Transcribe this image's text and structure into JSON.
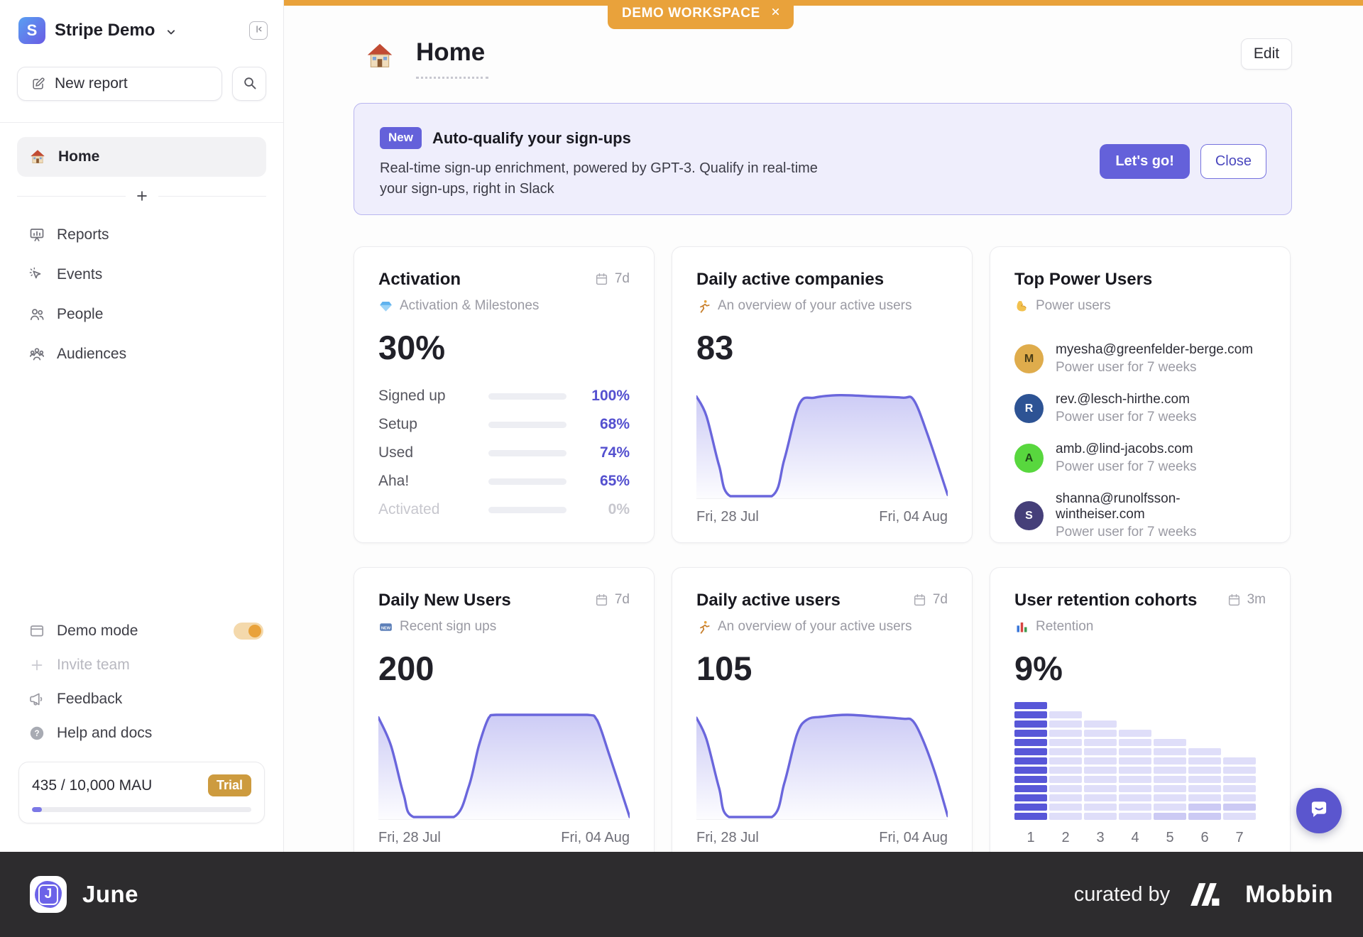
{
  "workspace": {
    "name": "Stripe Demo",
    "logo_letter": "S"
  },
  "sidebar": {
    "new_report_label": "New report",
    "nav": [
      {
        "icon": "house",
        "label": "Home",
        "active": true
      },
      {
        "icon": "reports",
        "label": "Reports"
      },
      {
        "icon": "events",
        "label": "Events"
      },
      {
        "icon": "people",
        "label": "People"
      },
      {
        "icon": "audiences",
        "label": "Audiences"
      }
    ],
    "bottom_nav": [
      {
        "icon": "window",
        "label": "Demo mode",
        "toggle": true,
        "toggle_on": true
      },
      {
        "icon": "plus",
        "label": "Invite team",
        "muted": true
      },
      {
        "icon": "megaphone",
        "label": "Feedback"
      },
      {
        "icon": "help",
        "label": "Help and docs"
      }
    ],
    "usage": {
      "text": "435 / 10,000 MAU",
      "badge": "Trial",
      "progress_pct": 4.4
    }
  },
  "topbar": {
    "demo_badge": "DEMO WORKSPACE"
  },
  "header": {
    "title": "Home",
    "edit_label": "Edit"
  },
  "banner": {
    "badge": "New",
    "title": "Auto-qualify your sign-ups",
    "body_line1": "Real-time sign-up enrichment, powered by GPT-3. Qualify in real-time",
    "body_line2": "your sign-ups, right in Slack",
    "primary_label": "Let's go!",
    "secondary_label": "Close"
  },
  "cards": {
    "activation": {
      "title": "Activation",
      "range": "7d",
      "subtitle": "Activation & Milestones",
      "subtitle_icon": "gem",
      "value": "30%",
      "rows": [
        {
          "label": "Signed up",
          "pct": 100
        },
        {
          "label": "Setup",
          "pct": 68
        },
        {
          "label": "Used",
          "pct": 74
        },
        {
          "label": "Aha!",
          "pct": 65
        },
        {
          "label": "Activated",
          "pct": 0,
          "muted": true
        }
      ]
    },
    "daily_active_companies": {
      "title": "Daily active companies",
      "subtitle": "An overview of your active users",
      "subtitle_icon": "runner",
      "value": "83",
      "x_start": "Fri, 28 Jul",
      "x_end": "Fri, 04 Aug"
    },
    "top_power_users": {
      "title": "Top Power Users",
      "subtitle": "Power users",
      "subtitle_icon": "muscle",
      "users": [
        {
          "initial": "M",
          "color": "#DFAC4C",
          "text_color": "#4A3D17",
          "email": "myesha@greenfelder-berge.com",
          "desc": "Power user for 7 weeks"
        },
        {
          "initial": "R",
          "color": "#2D5394",
          "text_color": "#FFFFFF",
          "email": "rev.@lesch-hirthe.com",
          "desc": "Power user for 7 weeks"
        },
        {
          "initial": "A",
          "color": "#58D73E",
          "text_color": "#1F4A17",
          "email": "amb.@lind-jacobs.com",
          "desc": "Power user for 7 weeks"
        },
        {
          "initial": "S",
          "color": "#453F79",
          "text_color": "#FFFFFF",
          "email": "shanna@runolfsson-wintheiser.com",
          "desc": "Power user for 7 weeks"
        }
      ]
    },
    "daily_new_users": {
      "title": "Daily New Users",
      "range": "7d",
      "subtitle": "Recent sign ups",
      "subtitle_icon": "new",
      "value": "200",
      "x_start": "Fri, 28 Jul",
      "x_end": "Fri, 04 Aug"
    },
    "daily_active_users": {
      "title": "Daily active users",
      "range": "7d",
      "subtitle": "An overview of your active users",
      "subtitle_icon": "runner",
      "value": "105",
      "x_start": "Fri, 28 Jul",
      "x_end": "Fri, 04 Aug"
    },
    "user_retention": {
      "title": "User retention cohorts",
      "range": "3m",
      "subtitle": "Retention",
      "subtitle_icon": "chartbars",
      "value": "9%"
    }
  },
  "chart_data": [
    {
      "id": "daily_active_companies",
      "type": "area",
      "title": "Daily active companies",
      "y_max": 83,
      "x_range": [
        "Fri, 28 Jul",
        "Fri, 04 Aug"
      ],
      "points": [
        [
          0,
          81
        ],
        [
          0.04,
          65
        ],
        [
          0.09,
          25
        ],
        [
          0.135,
          0
        ],
        [
          0.3,
          0
        ],
        [
          0.35,
          30
        ],
        [
          0.41,
          75
        ],
        [
          0.47,
          80
        ],
        [
          0.57,
          82
        ],
        [
          0.7,
          81
        ],
        [
          0.82,
          80
        ],
        [
          0.865,
          78
        ],
        [
          0.92,
          50
        ],
        [
          1,
          1
        ]
      ]
    },
    {
      "id": "daily_new_users",
      "type": "area",
      "title": "Daily New Users",
      "y_max": 200,
      "x_range": [
        "Fri, 28 Jul",
        "Fri, 04 Aug"
      ],
      "points": [
        [
          0,
          195
        ],
        [
          0.05,
          140
        ],
        [
          0.1,
          45
        ],
        [
          0.14,
          0
        ],
        [
          0.3,
          0
        ],
        [
          0.36,
          60
        ],
        [
          0.4,
          140
        ],
        [
          0.44,
          195
        ],
        [
          0.47,
          200
        ],
        [
          0.65,
          200
        ],
        [
          0.83,
          200
        ],
        [
          0.87,
          190
        ],
        [
          0.92,
          120
        ],
        [
          1,
          0
        ]
      ]
    },
    {
      "id": "daily_active_users",
      "type": "area",
      "title": "Daily active users",
      "y_max": 105,
      "x_range": [
        "Fri, 28 Jul",
        "Fri, 04 Aug"
      ],
      "points": [
        [
          0,
          102
        ],
        [
          0.04,
          80
        ],
        [
          0.09,
          30
        ],
        [
          0.13,
          0
        ],
        [
          0.3,
          0
        ],
        [
          0.35,
          35
        ],
        [
          0.4,
          85
        ],
        [
          0.44,
          100
        ],
        [
          0.5,
          103
        ],
        [
          0.6,
          105
        ],
        [
          0.72,
          103
        ],
        [
          0.82,
          101
        ],
        [
          0.86,
          99
        ],
        [
          0.9,
          80
        ],
        [
          0.95,
          45
        ],
        [
          1,
          1
        ]
      ]
    },
    {
      "id": "user_retention_cohorts",
      "type": "heatmap",
      "title": "User retention cohorts",
      "x_labels": [
        "1",
        "2",
        "3",
        "4",
        "5",
        "6",
        "7"
      ],
      "total_rows": 13,
      "cells_per_column": [
        13,
        12,
        11,
        10,
        9,
        8,
        7
      ],
      "mid_cells": [
        [
          5,
          13
        ],
        [
          6,
          12
        ],
        [
          6,
          13
        ],
        [
          7,
          12
        ]
      ]
    },
    {
      "id": "activation_funnel",
      "type": "bar",
      "title": "Activation",
      "categories": [
        "Signed up",
        "Setup",
        "Used",
        "Aha!",
        "Activated"
      ],
      "values": [
        100,
        68,
        74,
        65,
        0
      ],
      "ylabel": "%"
    }
  ],
  "footer_bar": {
    "brand": "June",
    "curated": "curated by",
    "partner": "Mobbin"
  },
  "colors": {
    "accent_orange": "#E9A23B",
    "accent_indigo": "#6461DA",
    "bar_fill": "#7B78E6",
    "line_stroke": "#6A66DC",
    "retention_dark": "#5857D8",
    "retention_light": "#DFDEF9",
    "retention_mid": "#CCCAF4",
    "trial_badge": "#CD9B3F"
  }
}
